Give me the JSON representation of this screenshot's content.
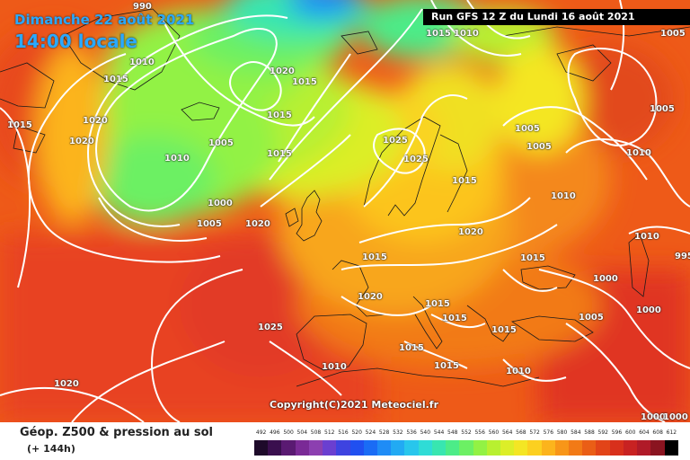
{
  "header": {
    "date_label": "Dimanche 22 août 2021",
    "time_label": "14:00 locale",
    "run_info": "Run GFS 12 Z du Lundi 16 août 2021"
  },
  "footer": {
    "title": "Géop. Z500 & pression au sol",
    "subtitle": "(+ 144h)",
    "copyright": "Copyright(C)2021 Meteociel.fr"
  },
  "scale": {
    "labels": [
      "492",
      "496",
      "500",
      "504",
      "508",
      "512",
      "516",
      "520",
      "524",
      "528",
      "532",
      "536",
      "540",
      "544",
      "548",
      "552",
      "556",
      "560",
      "564",
      "568",
      "572",
      "576",
      "580",
      "584",
      "588",
      "592",
      "596",
      "600",
      "604",
      "608",
      "612"
    ],
    "colors": [
      "#1e0a2a",
      "#3a0f4e",
      "#5a1a72",
      "#7a2a96",
      "#8c3fb0",
      "#6a3fd0",
      "#3e43e0",
      "#2050f0",
      "#1a6cf5",
      "#1f8cf6",
      "#22aaf3",
      "#28c6ec",
      "#2fdcd6",
      "#38e6b0",
      "#4cec88",
      "#6cf064",
      "#92f244",
      "#b8f030",
      "#dcee28",
      "#f4e624",
      "#fcd020",
      "#fcb41c",
      "#f89618",
      "#f27a16",
      "#ea5e16",
      "#e24418",
      "#d8301c",
      "#c82222",
      "#b01a28",
      "#8a1420",
      "#000000"
    ]
  },
  "isobars": [
    {
      "label": "990"
    },
    {
      "label": "1010"
    },
    {
      "label": "1015"
    },
    {
      "label": "1015"
    },
    {
      "label": "1010"
    },
    {
      "label": "1005"
    },
    {
      "label": "1020"
    },
    {
      "label": "1015"
    },
    {
      "label": "1020"
    },
    {
      "label": "1020"
    },
    {
      "label": "1015"
    },
    {
      "label": "1015"
    },
    {
      "label": "1005"
    },
    {
      "label": "1010"
    },
    {
      "label": "1025"
    },
    {
      "label": "1025"
    },
    {
      "label": "1005"
    },
    {
      "label": "1005"
    },
    {
      "label": "1005"
    },
    {
      "label": "1015"
    },
    {
      "label": "1015"
    },
    {
      "label": "1000"
    },
    {
      "label": "1005"
    },
    {
      "label": "1020"
    },
    {
      "label": "1010"
    },
    {
      "label": "1010"
    },
    {
      "label": "1020"
    },
    {
      "label": "1010"
    },
    {
      "label": "995"
    },
    {
      "label": "1015"
    },
    {
      "label": "1015"
    },
    {
      "label": "1000"
    },
    {
      "label": "1020"
    },
    {
      "label": "1015"
    },
    {
      "label": "1015"
    },
    {
      "label": "1015"
    },
    {
      "label": "1000"
    },
    {
      "label": "1025"
    },
    {
      "label": "1005"
    },
    {
      "label": "1015"
    },
    {
      "label": "1015"
    },
    {
      "label": "1010"
    },
    {
      "label": "1010"
    },
    {
      "label": "1020"
    },
    {
      "label": "1000"
    },
    {
      "label": "1000"
    }
  ]
}
